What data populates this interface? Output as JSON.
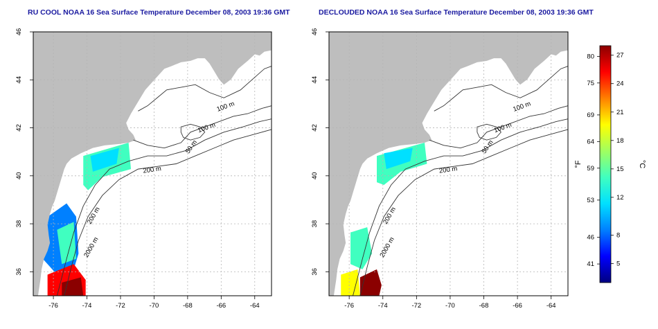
{
  "maps": [
    {
      "title": "RU COOL NOAA 16 Sea Surface Temperature December 08, 2003 19:36 GMT",
      "x_ticks": [
        "-76",
        "-74",
        "-72",
        "-70",
        "-68",
        "-66",
        "-64"
      ],
      "y_ticks": [
        "46",
        "44",
        "42",
        "40",
        "38",
        "36"
      ],
      "contour_labels": [
        "100 m",
        "100 m",
        "50 m",
        "200 m",
        "200 m",
        "2000 m"
      ]
    },
    {
      "title": "DECLOUDED NOAA 16 Sea Surface Temperature December 08, 2003 19:36 GMT",
      "x_ticks": [
        "-76",
        "-74",
        "-72",
        "-70",
        "-68",
        "-66",
        "-64"
      ],
      "y_ticks": [
        "46",
        "44",
        "42",
        "40",
        "38",
        "36"
      ],
      "contour_labels": [
        "100 m",
        "100 m",
        "50 m",
        "200 m",
        "200 m",
        "2000 m"
      ]
    }
  ],
  "colorbar": {
    "fahrenheit_ticks": [
      "80",
      "75",
      "69",
      "64",
      "59",
      "53",
      "46",
      "41"
    ],
    "celsius_ticks": [
      "27",
      "24",
      "21",
      "18",
      "15",
      "12",
      "8",
      "5"
    ],
    "fahrenheit_label": "°F",
    "celsius_label": "°C",
    "colors": [
      "#000080",
      "#0000ff",
      "#0080ff",
      "#00e0ff",
      "#40ffc0",
      "#a0ff60",
      "#ffff00",
      "#ff8000",
      "#ff0000",
      "#8b0000"
    ]
  },
  "map_colors": {
    "land": "#bebebe",
    "grid": "#b4b4b4",
    "contour": "#333333"
  }
}
